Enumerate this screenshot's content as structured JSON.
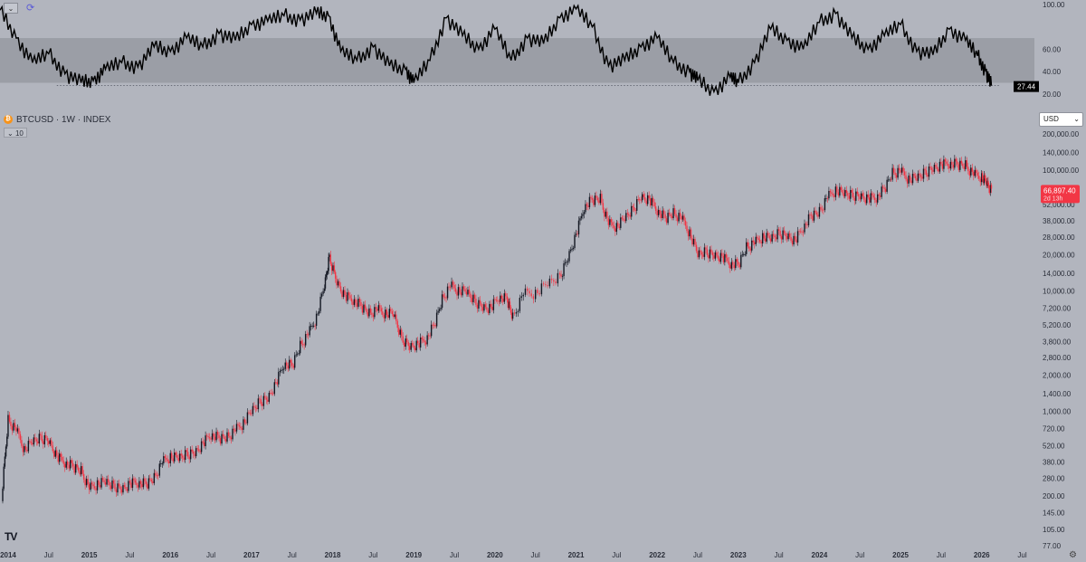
{
  "toolbar": {
    "collapse_icon": "chevron-down-icon",
    "sync_icon": "sync-icon"
  },
  "symbol": {
    "name": "BTCUSD · 1W · INDEX",
    "icon": "bitcoin-icon",
    "interval_label": "10"
  },
  "currency": {
    "selected": "USD"
  },
  "settings_icon": "gear-icon",
  "price_badge": {
    "price": "66,897.40",
    "countdown": "2d 13h",
    "color": "#f23645"
  },
  "rsi_badge": {
    "value": "27.44"
  },
  "chart_data": [
    {
      "type": "line",
      "pane": "oscillator",
      "y_ticks": [
        "100.00",
        "60.00",
        "40.00",
        "20.00"
      ],
      "band": [
        30,
        70
      ],
      "ylim": [
        15,
        100
      ],
      "x": [
        2013.9,
        2014.1,
        2014.3,
        2014.5,
        2014.7,
        2014.9,
        2015.05,
        2015.2,
        2015.4,
        2015.6,
        2015.8,
        2016.0,
        2016.2,
        2016.4,
        2016.6,
        2016.8,
        2017.0,
        2017.2,
        2017.4,
        2017.6,
        2017.8,
        2017.95,
        2018.1,
        2018.3,
        2018.5,
        2018.7,
        2018.9,
        2019.0,
        2019.2,
        2019.4,
        2019.6,
        2019.8,
        2020.0,
        2020.2,
        2020.4,
        2020.6,
        2020.8,
        2021.0,
        2021.2,
        2021.4,
        2021.6,
        2021.8,
        2022.0,
        2022.2,
        2022.4,
        2022.5,
        2022.7,
        2022.9,
        2023.0,
        2023.2,
        2023.4,
        2023.6,
        2023.8,
        2024.0,
        2024.2,
        2024.4,
        2024.6,
        2024.8,
        2025.0,
        2025.2,
        2025.4,
        2025.6,
        2025.8,
        2025.95,
        2026.05,
        2026.12
      ],
      "values": [
        95,
        70,
        48,
        56,
        38,
        30,
        32,
        42,
        48,
        44,
        62,
        58,
        70,
        62,
        74,
        68,
        82,
        85,
        90,
        86,
        92,
        90,
        58,
        50,
        62,
        45,
        42,
        30,
        50,
        88,
        72,
        60,
        78,
        50,
        70,
        65,
        88,
        96,
        80,
        45,
        50,
        62,
        70,
        48,
        40,
        32,
        22,
        35,
        30,
        48,
        78,
        68,
        60,
        84,
        92,
        70,
        60,
        72,
        82,
        58,
        55,
        78,
        68,
        54,
        40,
        27.44
      ]
    },
    {
      "type": "candlestick",
      "pane": "price",
      "symbol": "BTCUSD",
      "interval": "1W",
      "scale": "log",
      "ylim": [
        77,
        200000
      ],
      "y_ticks": [
        "200,000.00",
        "140,000.00",
        "100,000.00",
        "70,000.00",
        "52,000.00",
        "38,000.00",
        "28,000.00",
        "20,000.00",
        "14,000.00",
        "10,000.00",
        "7,200.00",
        "5,200.00",
        "3,800.00",
        "2,800.00",
        "2,000.00",
        "1,400.00",
        "1,000.00",
        "720.00",
        "520.00",
        "380.00",
        "280.00",
        "200.00",
        "145.00",
        "105.00",
        "77.00"
      ],
      "x_ticks": [
        "2014",
        "Jul",
        "2015",
        "Jul",
        "2016",
        "Jul",
        "2017",
        "Jul",
        "2018",
        "Jul",
        "2019",
        "Jul",
        "2020",
        "Jul",
        "2021",
        "Jul",
        "2022",
        "Jul",
        "2023",
        "Jul",
        "2024",
        "Jul",
        "2025",
        "Jul",
        "2026",
        "Jul"
      ],
      "xlim": [
        2013.9,
        2026.65
      ],
      "last_price": 66897.4,
      "x": [
        2013.92,
        2014.0,
        2014.1,
        2014.2,
        2014.3,
        2014.4,
        2014.5,
        2014.6,
        2014.7,
        2014.8,
        2014.9,
        2015.0,
        2015.1,
        2015.2,
        2015.3,
        2015.4,
        2015.5,
        2015.6,
        2015.7,
        2015.8,
        2015.9,
        2016.0,
        2016.1,
        2016.2,
        2016.3,
        2016.4,
        2016.5,
        2016.6,
        2016.7,
        2016.8,
        2016.9,
        2017.0,
        2017.1,
        2017.2,
        2017.3,
        2017.4,
        2017.5,
        2017.6,
        2017.7,
        2017.8,
        2017.9,
        2017.96,
        2018.05,
        2018.15,
        2018.25,
        2018.35,
        2018.45,
        2018.55,
        2018.65,
        2018.75,
        2018.85,
        2018.95,
        2019.05,
        2019.15,
        2019.25,
        2019.35,
        2019.45,
        2019.55,
        2019.65,
        2019.75,
        2019.85,
        2019.95,
        2020.05,
        2020.15,
        2020.22,
        2020.35,
        2020.5,
        2020.65,
        2020.8,
        2020.9,
        2021.0,
        2021.1,
        2021.2,
        2021.3,
        2021.4,
        2021.5,
        2021.6,
        2021.7,
        2021.8,
        2021.9,
        2022.0,
        2022.1,
        2022.2,
        2022.3,
        2022.4,
        2022.5,
        2022.6,
        2022.7,
        2022.8,
        2022.9,
        2023.0,
        2023.1,
        2023.2,
        2023.3,
        2023.4,
        2023.5,
        2023.6,
        2023.7,
        2023.8,
        2023.9,
        2024.0,
        2024.1,
        2024.2,
        2024.3,
        2024.4,
        2024.5,
        2024.6,
        2024.7,
        2024.8,
        2024.9,
        2025.0,
        2025.1,
        2025.2,
        2025.3,
        2025.4,
        2025.5,
        2025.6,
        2025.7,
        2025.8,
        2025.9,
        2026.0,
        2026.06,
        2026.12
      ],
      "close": [
        200,
        850,
        700,
        480,
        560,
        600,
        580,
        420,
        380,
        350,
        320,
        230,
        250,
        260,
        240,
        230,
        250,
        260,
        250,
        280,
        380,
        420,
        410,
        440,
        460,
        540,
        650,
        600,
        610,
        700,
        800,
        1000,
        1200,
        1300,
        1700,
        2500,
        2400,
        3500,
        4400,
        6000,
        11000,
        19000,
        12000,
        9000,
        8500,
        7500,
        6500,
        7000,
        6500,
        6400,
        4000,
        3500,
        3600,
        4000,
        5200,
        8500,
        11000,
        10000,
        9800,
        8200,
        7400,
        7200,
        9000,
        8500,
        6000,
        9500,
        9500,
        11500,
        13000,
        19000,
        29000,
        50000,
        57000,
        58000,
        36000,
        34000,
        40000,
        47000,
        61000,
        57000,
        47000,
        40000,
        44000,
        40000,
        30000,
        20000,
        21000,
        20000,
        19000,
        17000,
        16500,
        23000,
        25000,
        28000,
        27000,
        30000,
        29000,
        26000,
        34000,
        42000,
        45000,
        60000,
        68000,
        64000,
        62000,
        62000,
        58000,
        60000,
        70000,
        95000,
        98000,
        84000,
        86000,
        95000,
        105000,
        110000,
        115000,
        112000,
        110000,
        92000,
        88000,
        78000,
        66897.4
      ],
      "increasing_color": "#131722",
      "decreasing_color": "#f23645"
    }
  ]
}
